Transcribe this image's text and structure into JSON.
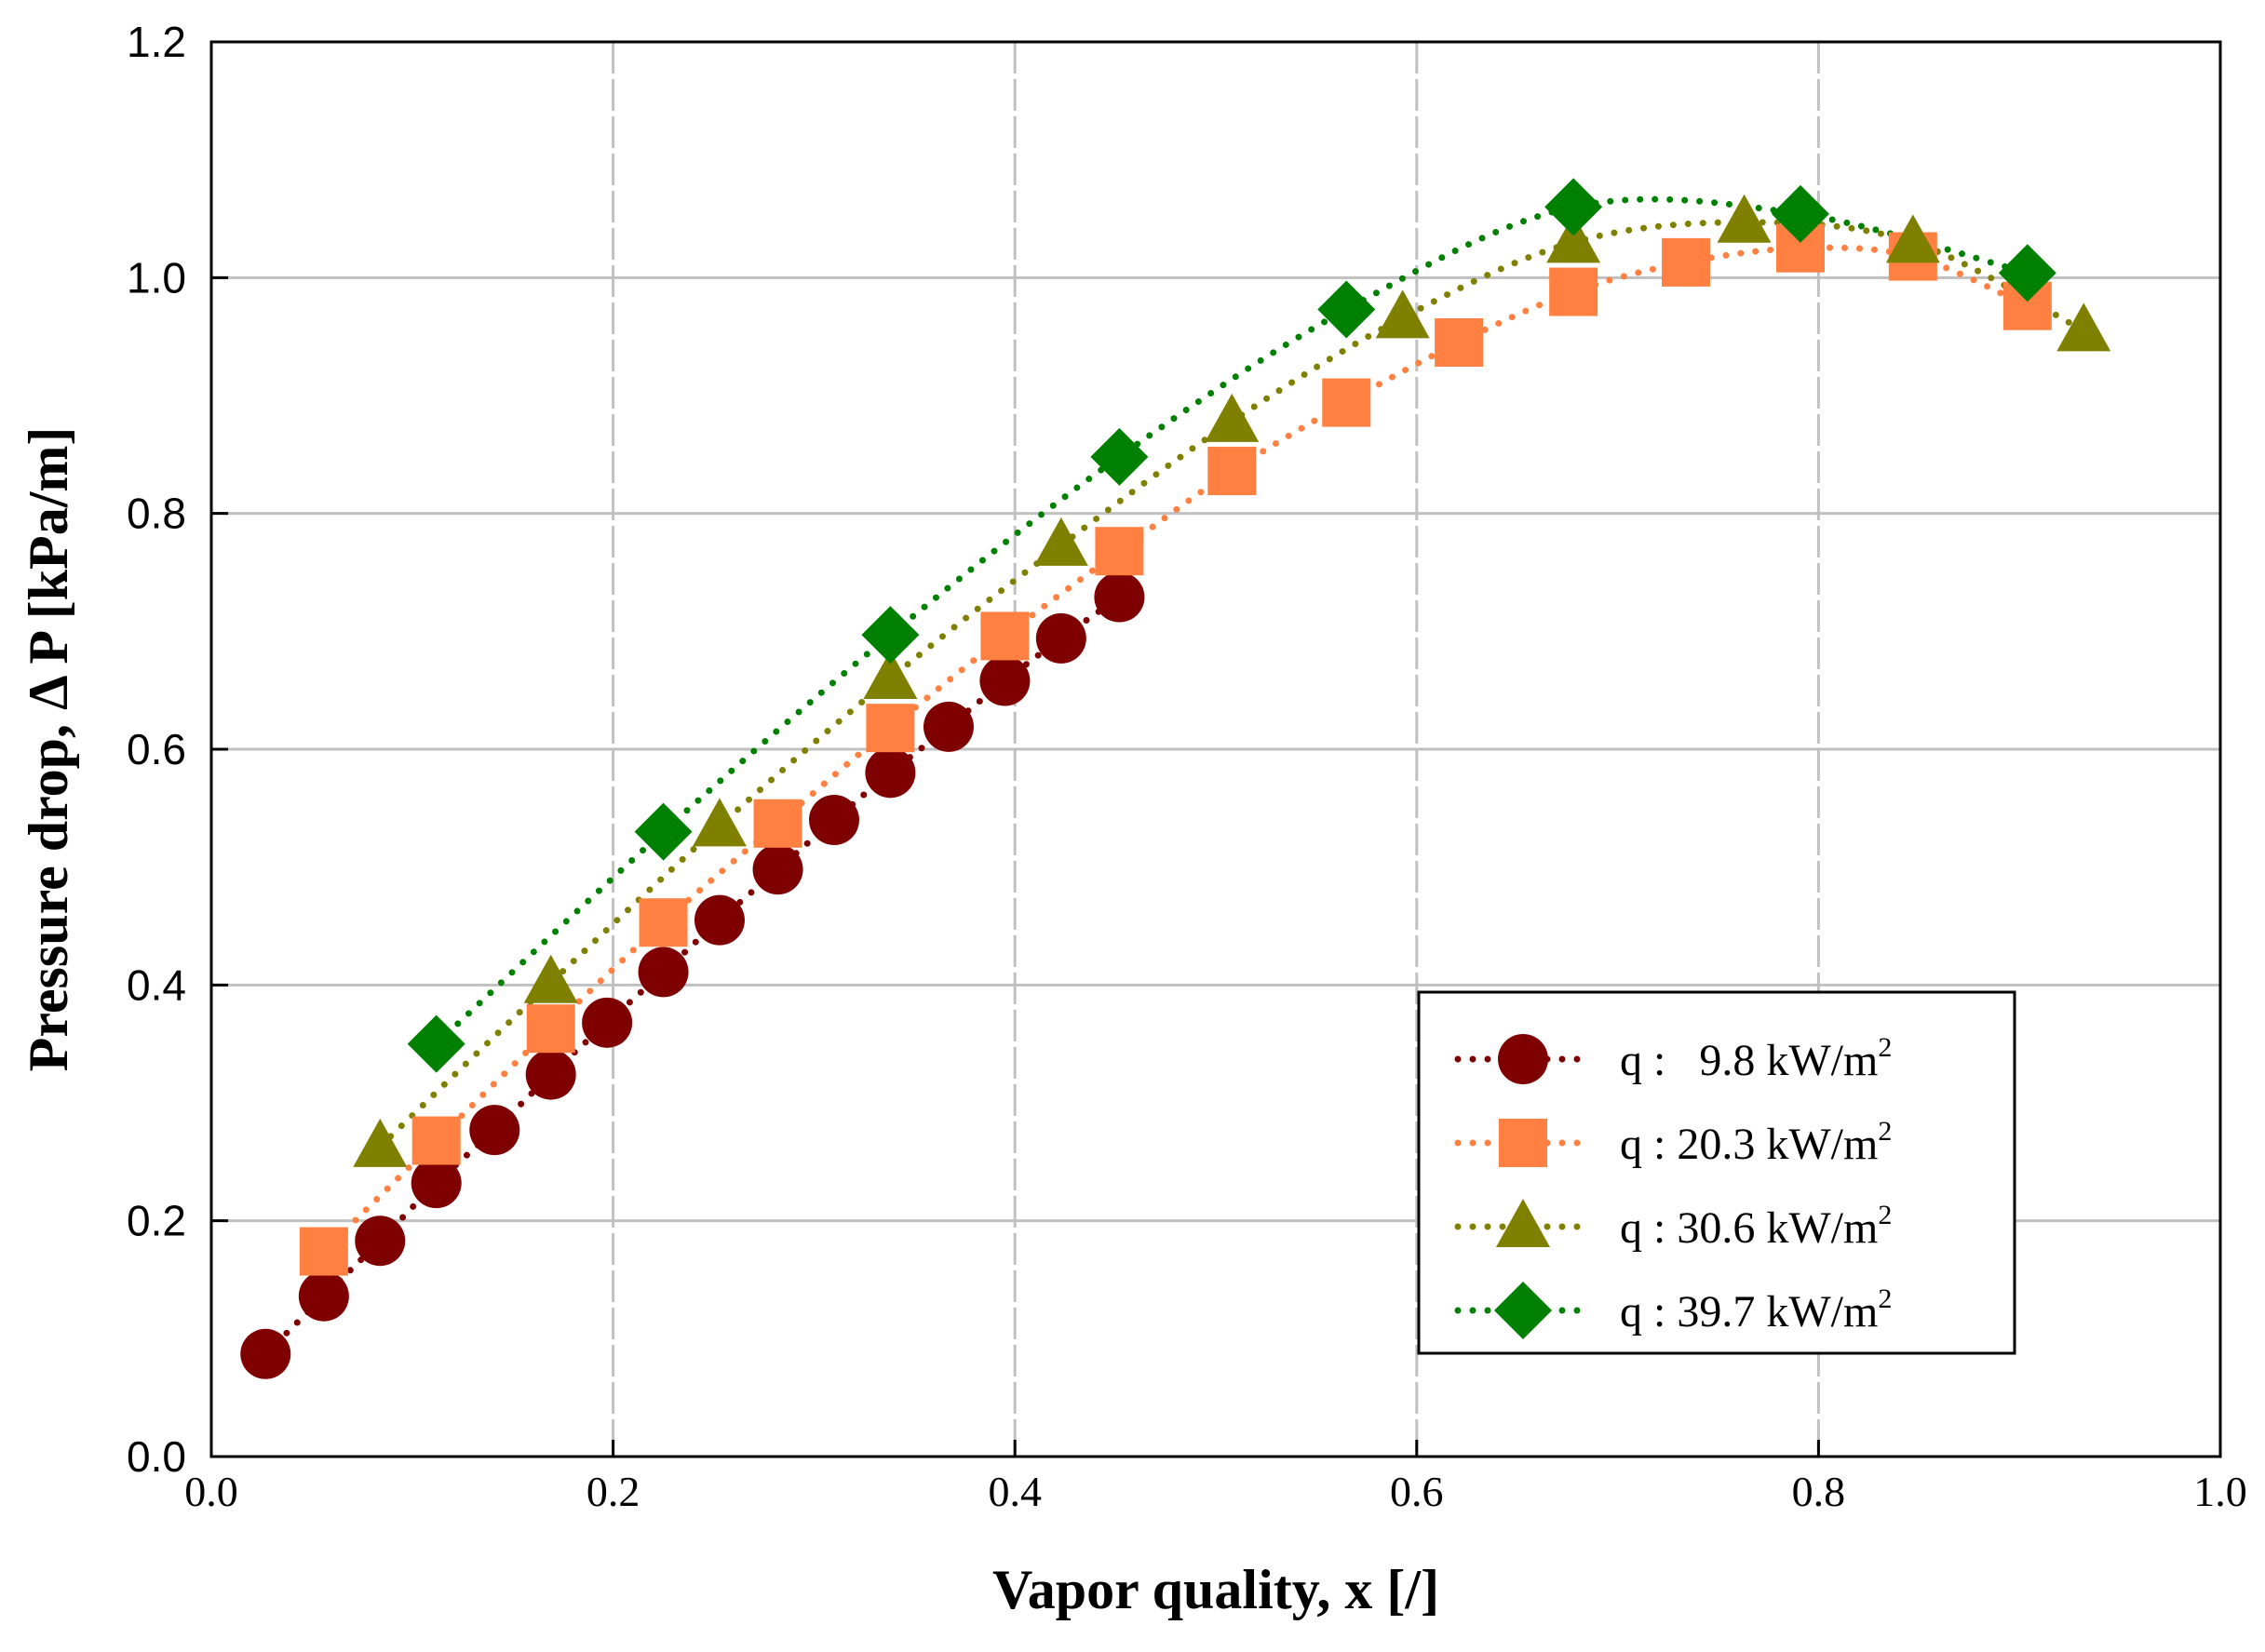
{
  "chart_data": {
    "type": "scatter",
    "title": "",
    "xlabel": "Vapor quality, x [/]",
    "ylabel": "Pressure drop, Δ  P [kPa/m]",
    "xlim": [
      0.0,
      1.0
    ],
    "ylim": [
      0.0,
      1.2
    ],
    "grid": true,
    "x_ticks": [
      "0.0",
      "0.2",
      "0.4",
      "0.6",
      "0.8",
      "1.0"
    ],
    "y_ticks": [
      "0.0",
      "0.2",
      "0.4",
      "0.6",
      "0.8",
      "1.0",
      "1.2"
    ],
    "legend_position": "bottom-right",
    "series": [
      {
        "name": "q :   9.8 kW/m",
        "name_sup": "2",
        "marker": "circle",
        "color": "#7f0000",
        "x": [
          0.027,
          0.056,
          0.084,
          0.112,
          0.141,
          0.169,
          0.197,
          0.225,
          0.253,
          0.282,
          0.31,
          0.338,
          0.367,
          0.395,
          0.423,
          0.452
        ],
        "y": [
          0.087,
          0.136,
          0.183,
          0.232,
          0.277,
          0.324,
          0.368,
          0.411,
          0.455,
          0.498,
          0.54,
          0.58,
          0.619,
          0.658,
          0.694,
          0.729
        ]
      },
      {
        "name": "q : 20.3 kW/m",
        "name_sup": "2",
        "marker": "square",
        "color": "#ff8040",
        "x": [
          0.056,
          0.112,
          0.169,
          0.225,
          0.282,
          0.338,
          0.395,
          0.452,
          0.508,
          0.565,
          0.621,
          0.678,
          0.734,
          0.791,
          0.847,
          0.904
        ],
        "y": [
          0.174,
          0.268,
          0.363,
          0.453,
          0.537,
          0.618,
          0.696,
          0.768,
          0.836,
          0.894,
          0.945,
          0.988,
          1.013,
          1.025,
          1.018,
          0.976
        ]
      },
      {
        "name": "q : 30.6 kW/m",
        "name_sup": "2",
        "marker": "triangle",
        "color": "#808000",
        "x": [
          0.084,
          0.169,
          0.253,
          0.338,
          0.423,
          0.508,
          0.593,
          0.678,
          0.763,
          0.847,
          0.932
        ],
        "y": [
          0.263,
          0.402,
          0.535,
          0.66,
          0.773,
          0.878,
          0.966,
          1.03,
          1.047,
          1.03,
          0.955
        ]
      },
      {
        "name": "q : 39.7 kW/m",
        "name_sup": "2",
        "marker": "diamond",
        "color": "#008000",
        "x": [
          0.112,
          0.225,
          0.338,
          0.452,
          0.565,
          0.678,
          0.791,
          0.904
        ],
        "y": [
          0.35,
          0.53,
          0.697,
          0.848,
          0.973,
          1.06,
          1.054,
          1.004
        ]
      }
    ]
  }
}
